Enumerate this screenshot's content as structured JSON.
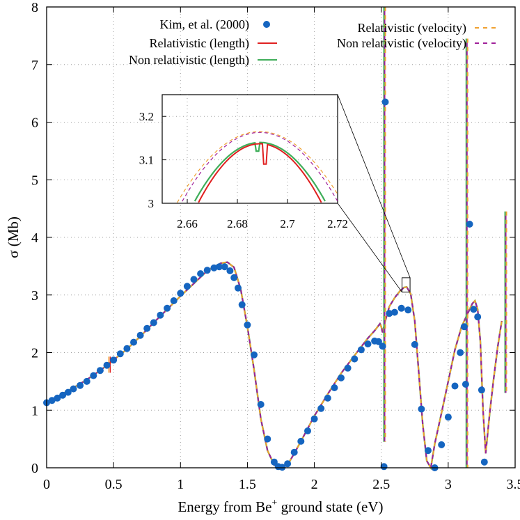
{
  "chart_data": {
    "type": "line",
    "xlabel_main": "Energy from Be",
    "xlabel_sup": "+",
    "xlabel_tail": " ground state (eV)",
    "ylabel": "σ (Mb)",
    "xlim": [
      0,
      3.5
    ],
    "ylim": [
      0,
      8
    ],
    "x_ticks": [
      "0",
      "0.5",
      "1",
      "1.5",
      "2",
      "2.5",
      "3",
      "3.5"
    ],
    "y_ticks": [
      "0",
      "1",
      "2",
      "3",
      "4",
      "5",
      "6",
      "7",
      "8"
    ],
    "grid": true,
    "legend_position": "top",
    "colors": {
      "kim": "#1565c0",
      "rel_length": "#e02020",
      "nonrel_length": "#3fae5a",
      "rel_velocity": "#f0a030",
      "nonrel_velocity": "#a0209a"
    },
    "legend": [
      {
        "label": "Kim, et al. (2000)",
        "style": "points",
        "color_key": "kim"
      },
      {
        "label": "Relativistic (length)",
        "style": "solid",
        "color_key": "rel_length"
      },
      {
        "label": "Non relativistic (length)",
        "style": "solid",
        "color_key": "nonrel_length"
      },
      {
        "label": "Relativistic (velocity)",
        "style": "dashed",
        "color_key": "rel_velocity"
      },
      {
        "label": "Non relativistic (velocity)",
        "style": "dashed",
        "color_key": "nonrel_velocity"
      }
    ],
    "kim_points": {
      "x": [
        0.0,
        0.04,
        0.08,
        0.12,
        0.16,
        0.2,
        0.25,
        0.3,
        0.35,
        0.4,
        0.45,
        0.5,
        0.55,
        0.6,
        0.65,
        0.7,
        0.75,
        0.8,
        0.85,
        0.9,
        0.95,
        1.0,
        1.05,
        1.1,
        1.15,
        1.2,
        1.25,
        1.29,
        1.33,
        1.37,
        1.4,
        1.43,
        1.46,
        1.5,
        1.55,
        1.6,
        1.65,
        1.7,
        1.73,
        1.76,
        1.8,
        1.85,
        1.9,
        1.95,
        2.0,
        2.05,
        2.1,
        2.15,
        2.2,
        2.25,
        2.3,
        2.35,
        2.4,
        2.45,
        2.48,
        2.51,
        2.52,
        2.53,
        2.56,
        2.6,
        2.65,
        2.7,
        2.75,
        2.8,
        2.85,
        2.9,
        2.95,
        3.0,
        3.05,
        3.09,
        3.12,
        3.13,
        3.16,
        3.19,
        3.22,
        3.25,
        3.27
      ],
      "y": [
        1.13,
        1.17,
        1.21,
        1.26,
        1.31,
        1.37,
        1.43,
        1.5,
        1.6,
        1.69,
        1.78,
        1.87,
        1.98,
        2.07,
        2.18,
        2.3,
        2.42,
        2.52,
        2.65,
        2.77,
        2.9,
        3.03,
        3.15,
        3.27,
        3.37,
        3.43,
        3.47,
        3.49,
        3.49,
        3.42,
        3.3,
        3.12,
        2.83,
        2.48,
        1.96,
        1.1,
        0.5,
        0.1,
        0.02,
        0.01,
        0.07,
        0.27,
        0.46,
        0.64,
        0.85,
        1.03,
        1.21,
        1.39,
        1.56,
        1.73,
        1.89,
        2.05,
        2.15,
        2.2,
        2.19,
        2.11,
        0.02,
        6.35,
        2.68,
        2.7,
        2.77,
        2.74,
        2.14,
        1.02,
        0.3,
        0.0,
        0.4,
        0.88,
        1.42,
        2.0,
        2.45,
        1.45,
        4.23,
        2.75,
        2.62,
        1.35,
        0.1
      ]
    },
    "model_curve": {
      "x": [
        0.0,
        0.1,
        0.2,
        0.3,
        0.4,
        0.5,
        0.6,
        0.7,
        0.8,
        0.9,
        1.0,
        1.1,
        1.2,
        1.3,
        1.35,
        1.4,
        1.45,
        1.5,
        1.55,
        1.6,
        1.65,
        1.7,
        1.75,
        1.8,
        1.85,
        1.9,
        2.0,
        2.1,
        2.2,
        2.3,
        2.4,
        2.45,
        2.49,
        2.5,
        2.51,
        2.53,
        2.56,
        2.6,
        2.64,
        2.67,
        2.69,
        2.72,
        2.75,
        2.78,
        2.81,
        2.84,
        2.87,
        2.9,
        2.95,
        3.0,
        3.05,
        3.1,
        3.12,
        3.15,
        3.18,
        3.2,
        3.22,
        3.24,
        3.26,
        3.28,
        3.31,
        3.34,
        3.37,
        3.4
      ],
      "y": [
        1.13,
        1.26,
        1.39,
        1.53,
        1.69,
        1.87,
        2.06,
        2.28,
        2.52,
        2.75,
        2.98,
        3.2,
        3.42,
        3.55,
        3.57,
        3.48,
        3.1,
        2.45,
        1.7,
        0.85,
        0.3,
        0.05,
        0.0,
        0.05,
        0.25,
        0.46,
        0.9,
        1.28,
        1.64,
        1.95,
        2.25,
        2.38,
        2.5,
        2.45,
        2.35,
        2.55,
        2.8,
        2.95,
        3.07,
        3.13,
        3.14,
        3.02,
        2.55,
        1.65,
        0.75,
        0.12,
        0.0,
        0.42,
        0.95,
        1.5,
        2.05,
        2.45,
        2.55,
        2.7,
        2.85,
        2.9,
        2.75,
        2.2,
        1.0,
        0.25,
        0.95,
        1.55,
        2.1,
        2.55
      ]
    },
    "resonances": [
      {
        "x": 2.525,
        "ymin": 0.45,
        "ymax": 8.0
      },
      {
        "x": 3.14,
        "ymin": 0.0,
        "ymax": 7.45
      },
      {
        "x": 3.43,
        "ymin": 1.3,
        "ymax": 4.45
      }
    ],
    "glitch": {
      "x": 0.47,
      "y_low": 1.65,
      "y_high": 1.93
    },
    "inset": {
      "xlim": [
        2.65,
        2.72
      ],
      "ylim": [
        3.0,
        3.25
      ],
      "x_ticks": [
        "2.66",
        "2.68",
        "2.7",
        "2.72"
      ],
      "y_ticks": [
        "3",
        "3.1",
        "3.2"
      ],
      "zoom_box_x": [
        2.655,
        2.715
      ],
      "zoom_box_y": [
        3.05,
        3.3
      ],
      "peak_x": 2.689,
      "rel_length_peak": 3.137,
      "nonrel_length_peak": 3.14,
      "rel_velocity_peak": 3.165,
      "nonrel_velocity_peak": 3.163,
      "rel_length_dip": {
        "x": 2.691,
        "y": 3.09
      },
      "nonrel_length_dip": {
        "x": 2.688,
        "y": 3.12
      }
    }
  }
}
